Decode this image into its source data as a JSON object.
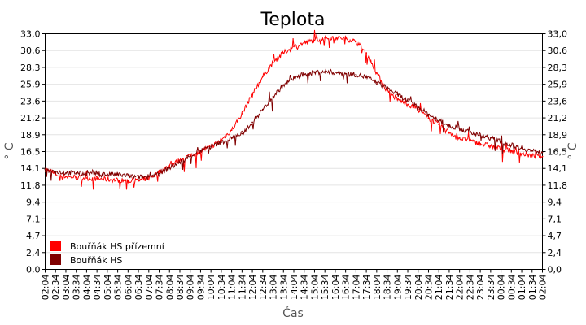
{
  "chart_data": {
    "type": "line",
    "title": "Teplota",
    "xlabel": "Čas",
    "ylabel": "° C",
    "ylim": [
      0,
      33
    ],
    "y_ticks": [
      "0,0",
      "2,4",
      "4,7",
      "7,1",
      "9,4",
      "11,8",
      "14,1",
      "16,5",
      "18,9",
      "21,2",
      "23,6",
      "25,9",
      "28,3",
      "30,6",
      "33,0"
    ],
    "x_ticks": [
      "02:04",
      "02:34",
      "03:04",
      "03:34",
      "04:04",
      "04:34",
      "05:04",
      "05:34",
      "06:04",
      "06:34",
      "07:04",
      "07:34",
      "08:04",
      "08:34",
      "09:04",
      "09:34",
      "10:04",
      "10:34",
      "11:04",
      "11:34",
      "12:04",
      "12:34",
      "13:04",
      "13:34",
      "14:04",
      "14:34",
      "15:04",
      "15:34",
      "16:04",
      "16:34",
      "17:04",
      "17:34",
      "18:04",
      "18:34",
      "19:04",
      "19:34",
      "20:04",
      "20:34",
      "21:04",
      "21:34",
      "22:04",
      "22:34",
      "23:04",
      "23:34",
      "00:04",
      "00:34",
      "01:04",
      "01:34",
      "02:04"
    ],
    "grid": true,
    "legend_position": "bottom-left",
    "series": [
      {
        "name": "Bouřňák HS přízemní",
        "color": "#ff0000",
        "values": [
          14.0,
          13.3,
          13.0,
          12.9,
          12.8,
          12.7,
          12.6,
          12.5,
          12.4,
          12.4,
          12.8,
          13.6,
          14.5,
          15.3,
          16.0,
          16.6,
          17.2,
          18.1,
          19.5,
          21.8,
          24.5,
          27.0,
          29.0,
          30.3,
          31.2,
          31.7,
          32.1,
          32.4,
          32.5,
          32.3,
          31.9,
          30.3,
          27.5,
          25.0,
          23.8,
          23.1,
          22.4,
          21.2,
          20.3,
          19.2,
          18.4,
          18.0,
          17.6,
          17.3,
          16.9,
          16.6,
          16.2,
          15.9,
          15.8
        ]
      },
      {
        "name": "Bouřňák HS",
        "color": "#800000",
        "values": [
          14.0,
          13.7,
          13.5,
          13.5,
          13.4,
          13.4,
          13.3,
          13.3,
          13.1,
          12.9,
          13.0,
          13.4,
          14.2,
          15.0,
          15.9,
          16.6,
          17.2,
          17.8,
          18.4,
          19.0,
          20.6,
          22.4,
          24.2,
          25.8,
          26.8,
          27.3,
          27.6,
          27.7,
          27.6,
          27.4,
          27.3,
          26.9,
          26.2,
          25.4,
          24.5,
          23.6,
          22.7,
          21.7,
          20.8,
          20.2,
          19.7,
          19.2,
          18.8,
          18.4,
          17.9,
          17.4,
          17.0,
          16.6,
          16.4
        ]
      }
    ]
  }
}
